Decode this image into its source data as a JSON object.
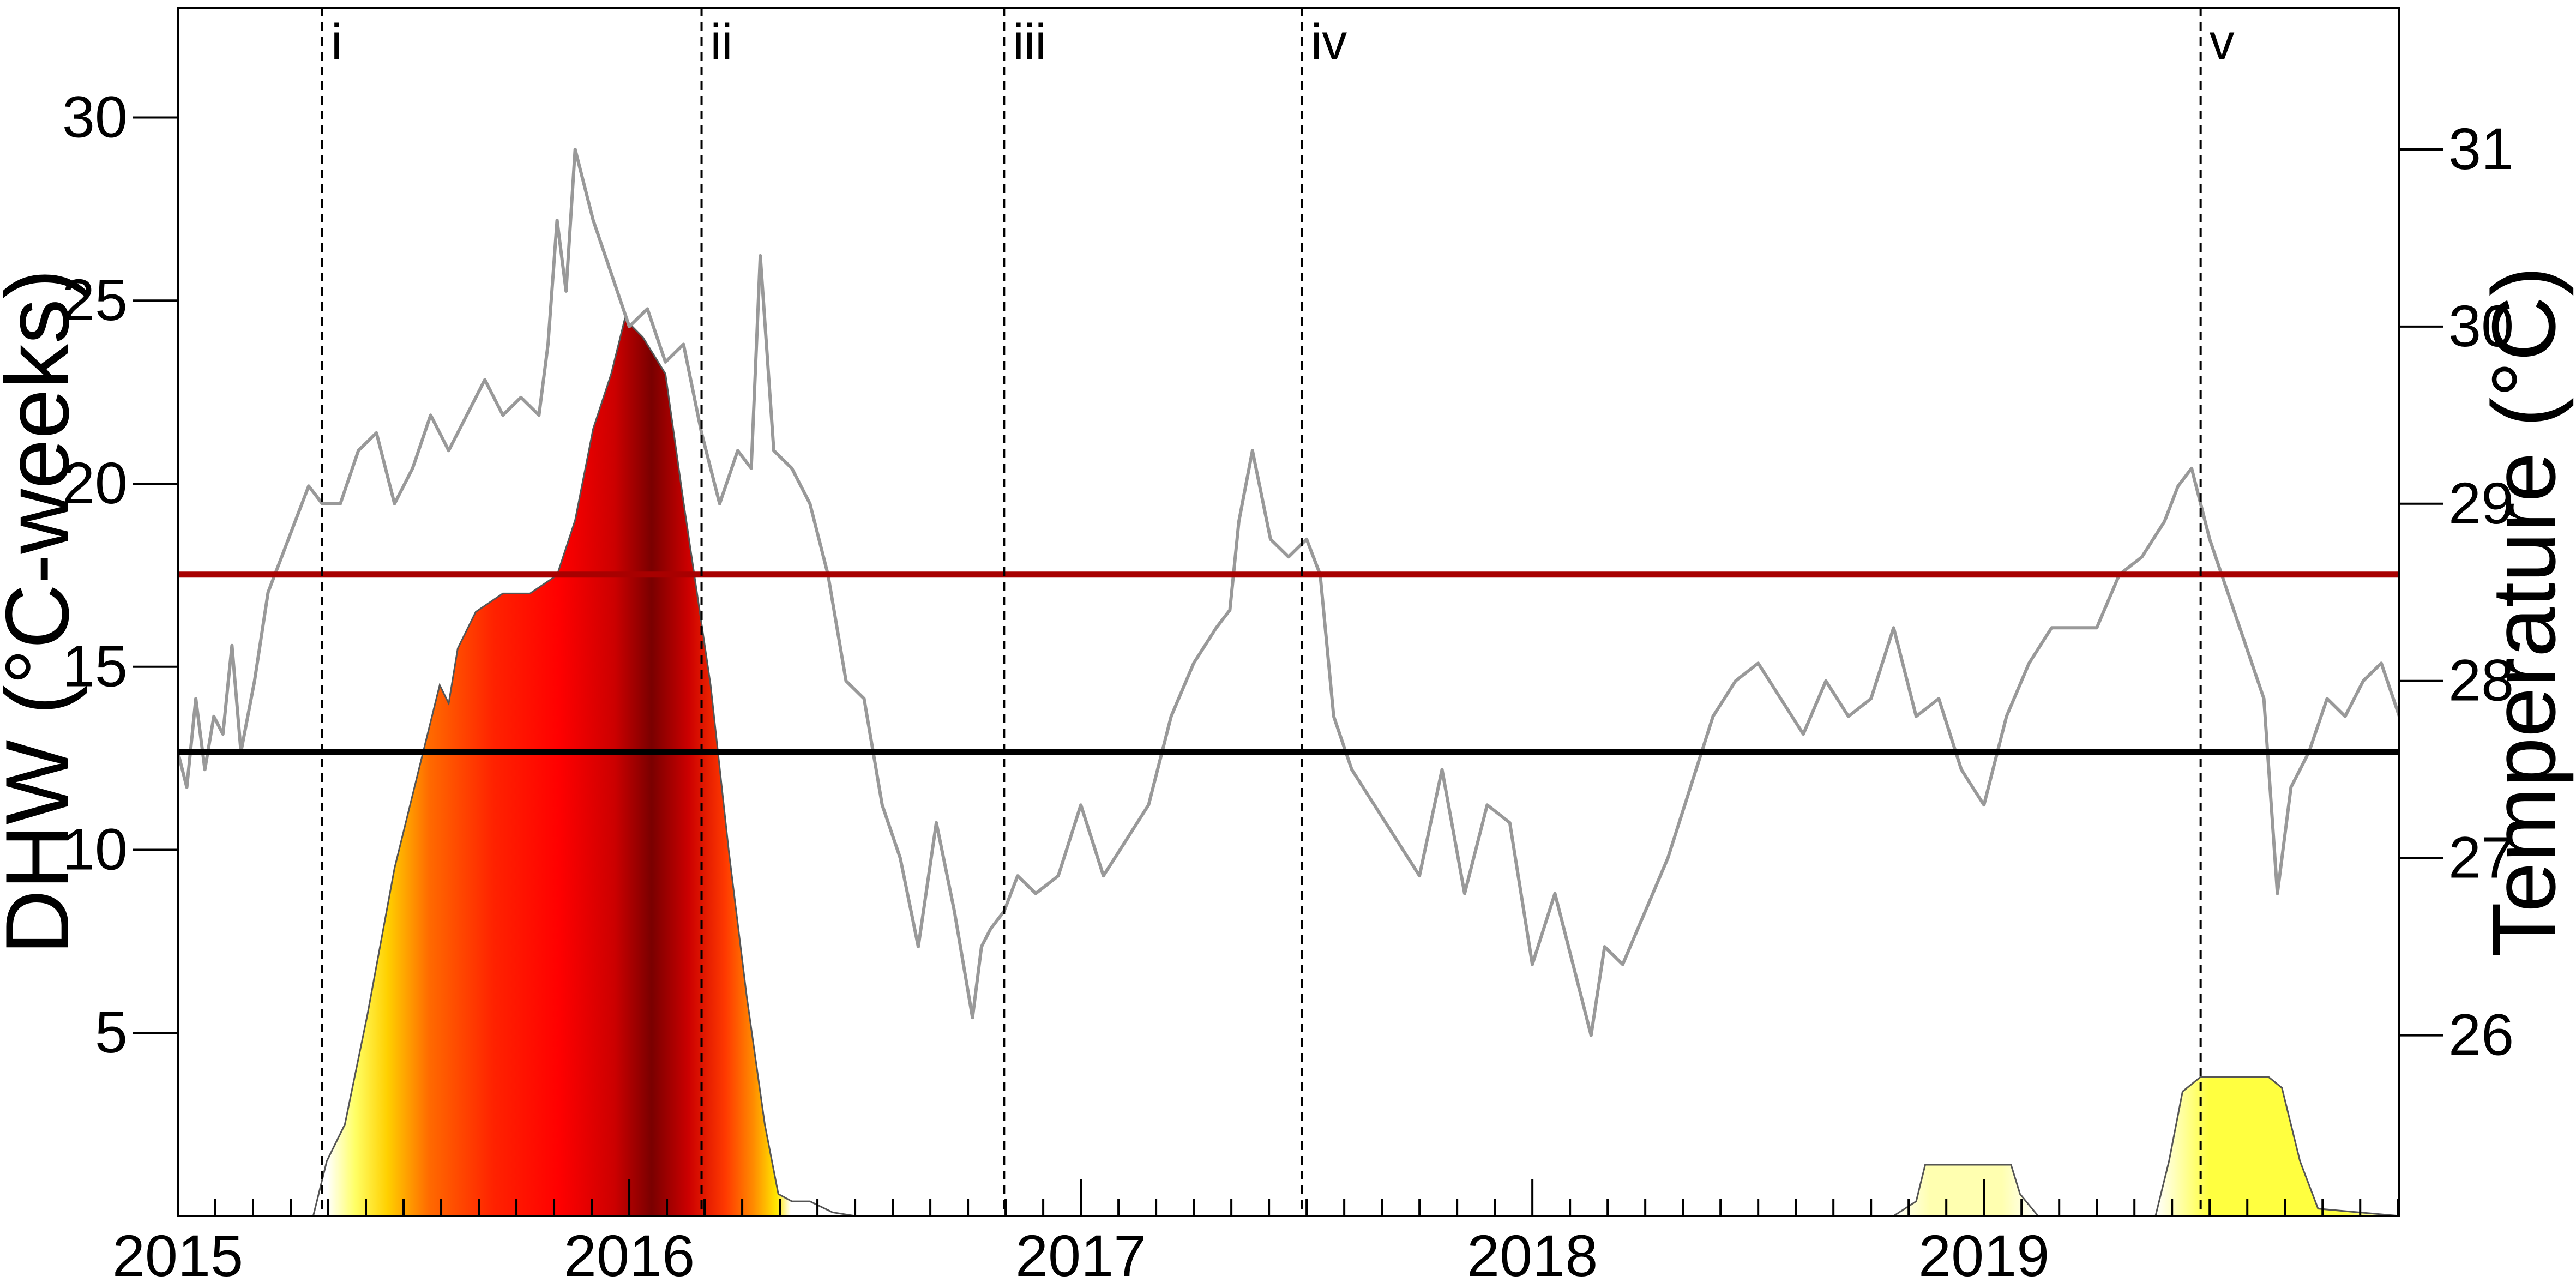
{
  "chart_data": {
    "type": "area",
    "xlabel": "",
    "ylabel": "DHW (°C-weeks)",
    "ylabel_right": "Temperature (°C)",
    "xlim": [
      2015.0,
      2019.92
    ],
    "ylim": [
      0,
      33
    ],
    "ylim_right": [
      24.98,
      31.8
    ],
    "x_ticks": [
      2015,
      2016,
      2017,
      2018,
      2019
    ],
    "x_tick_labels": [
      "2015",
      "2016",
      "2017",
      "2018",
      "2019"
    ],
    "y_ticks": [
      5,
      10,
      15,
      20,
      25,
      30
    ],
    "y_tick_labels": [
      "5",
      "10",
      "15",
      "20",
      "25",
      "30"
    ],
    "y_ticks_right": [
      26,
      27,
      28,
      29,
      30,
      31
    ],
    "y_tick_labels_right": [
      "26",
      "27",
      "28",
      "29",
      "30",
      "31"
    ],
    "grid": false,
    "event_lines": [
      {
        "label": "i",
        "x": 2015.32
      },
      {
        "label": "ii",
        "x": 2016.16
      },
      {
        "label": "iii",
        "x": 2016.83
      },
      {
        "label": "iv",
        "x": 2017.49
      },
      {
        "label": "v",
        "x": 2019.48
      }
    ],
    "threshold_lines": [
      {
        "axis": "right",
        "value": 28.6,
        "color": "#a80000"
      },
      {
        "axis": "right",
        "value": 27.6,
        "color": "#000000"
      }
    ],
    "series": [
      {
        "axis": "left",
        "render": "area",
        "x": [
          2015.0,
          2015.3,
          2015.33,
          2015.37,
          2015.42,
          2015.48,
          2015.54,
          2015.58,
          2015.6,
          2015.62,
          2015.66,
          2015.72,
          2015.78,
          2015.84,
          2015.88,
          2015.92,
          2015.96,
          2015.99,
          2016.03,
          2016.08,
          2016.12,
          2016.15,
          2016.18,
          2016.22,
          2016.26,
          2016.3,
          2016.33,
          2016.36,
          2016.4,
          2016.45,
          2016.5,
          2018.8,
          2018.85,
          2018.87,
          2019.06,
          2019.08,
          2019.12,
          2019.38,
          2019.41,
          2019.44,
          2019.48,
          2019.63,
          2019.66,
          2019.7,
          2019.74,
          2019.92
        ],
        "y": [
          0,
          0,
          1.5,
          2.5,
          5.5,
          9.5,
          12.5,
          14.5,
          14.0,
          15.5,
          16.5,
          17.0,
          17.0,
          17.5,
          19.0,
          21.5,
          23.0,
          24.5,
          24.0,
          23.0,
          19.5,
          17.0,
          14.5,
          10.0,
          6.0,
          2.5,
          0.6,
          0.4,
          0.4,
          0.1,
          0,
          0,
          0.4,
          1.4,
          1.4,
          0.6,
          0,
          0,
          1.5,
          3.4,
          3.8,
          3.8,
          3.5,
          1.5,
          0.2,
          0
        ]
      },
      {
        "axis": "right",
        "render": "line",
        "color": "#999999",
        "x": [
          2015.0,
          2015.02,
          2015.04,
          2015.06,
          2015.08,
          2015.1,
          2015.12,
          2015.14,
          2015.17,
          2015.2,
          2015.23,
          2015.26,
          2015.29,
          2015.32,
          2015.36,
          2015.4,
          2015.44,
          2015.48,
          2015.52,
          2015.56,
          2015.6,
          2015.64,
          2015.68,
          2015.72,
          2015.76,
          2015.8,
          2015.82,
          2015.84,
          2015.86,
          2015.88,
          2015.92,
          2015.96,
          2016.0,
          2016.04,
          2016.08,
          2016.12,
          2016.16,
          2016.2,
          2016.24,
          2016.27,
          2016.29,
          2016.32,
          2016.36,
          2016.4,
          2016.44,
          2016.48,
          2016.52,
          2016.56,
          2016.6,
          2016.64,
          2016.68,
          2016.72,
          2016.76,
          2016.78,
          2016.8,
          2016.83,
          2016.86,
          2016.9,
          2016.95,
          2017.0,
          2017.05,
          2017.1,
          2017.15,
          2017.2,
          2017.25,
          2017.3,
          2017.33,
          2017.35,
          2017.38,
          2017.42,
          2017.46,
          2017.5,
          2017.53,
          2017.56,
          2017.6,
          2017.65,
          2017.7,
          2017.75,
          2017.8,
          2017.85,
          2017.9,
          2017.95,
          2018.0,
          2018.05,
          2018.1,
          2018.13,
          2018.16,
          2018.2,
          2018.25,
          2018.3,
          2018.35,
          2018.4,
          2018.45,
          2018.5,
          2018.55,
          2018.6,
          2018.65,
          2018.7,
          2018.75,
          2018.8,
          2018.85,
          2018.9,
          2018.95,
          2019.0,
          2019.05,
          2019.1,
          2019.15,
          2019.2,
          2019.25,
          2019.3,
          2019.35,
          2019.4,
          2019.43,
          2019.46,
          2019.5,
          2019.54,
          2019.58,
          2019.62,
          2019.65,
          2019.68,
          2019.72,
          2019.76,
          2019.8,
          2019.84,
          2019.88,
          2019.92
        ],
        "y": [
          27.6,
          27.4,
          27.9,
          27.5,
          27.8,
          27.7,
          28.2,
          27.6,
          28.0,
          28.5,
          28.7,
          28.9,
          29.1,
          29.0,
          29.0,
          29.3,
          29.4,
          29.0,
          29.2,
          29.5,
          29.3,
          29.5,
          29.7,
          29.5,
          29.6,
          29.5,
          29.9,
          30.6,
          30.2,
          31.0,
          30.6,
          30.3,
          30.0,
          30.1,
          29.8,
          29.9,
          29.4,
          29.0,
          29.3,
          29.2,
          30.4,
          29.3,
          29.2,
          29.0,
          28.6,
          28.0,
          27.9,
          27.3,
          27.0,
          26.5,
          27.2,
          26.7,
          26.1,
          26.5,
          26.6,
          26.7,
          26.9,
          26.8,
          26.9,
          27.3,
          26.9,
          27.1,
          27.3,
          27.8,
          28.1,
          28.3,
          28.4,
          28.9,
          29.3,
          28.8,
          28.7,
          28.8,
          28.6,
          27.8,
          27.5,
          27.3,
          27.1,
          26.9,
          27.5,
          26.8,
          27.3,
          27.2,
          26.4,
          26.8,
          26.3,
          26.0,
          26.5,
          26.4,
          26.7,
          27.0,
          27.4,
          27.8,
          28.0,
          28.1,
          27.9,
          27.7,
          28.0,
          27.8,
          27.9,
          28.3,
          27.8,
          27.9,
          27.5,
          27.3,
          27.8,
          28.1,
          28.3,
          28.3,
          28.3,
          28.6,
          28.7,
          28.9,
          29.1,
          29.2,
          28.8,
          28.5,
          28.2,
          27.9,
          26.8,
          27.4,
          27.6,
          27.9,
          27.8,
          28.0,
          28.1,
          27.8
        ]
      }
    ]
  }
}
